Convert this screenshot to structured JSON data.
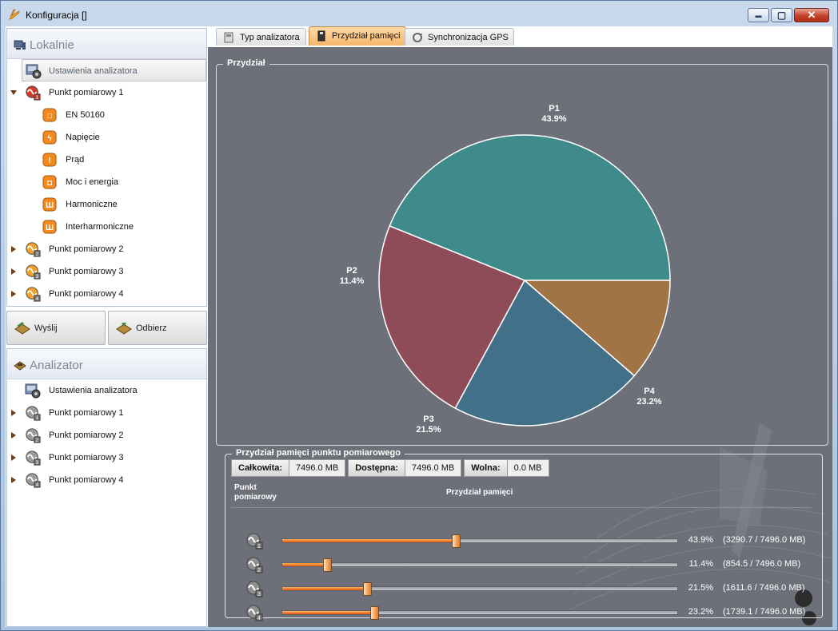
{
  "window": {
    "title": "Konfiguracja []",
    "buttons": {
      "minimize": "▬",
      "maximize": "▢",
      "close": "✕"
    }
  },
  "local_panel": {
    "header": "Lokalnie",
    "items": [
      {
        "label": "Ustawienia analizatora",
        "icon": "analyzer-settings-icon",
        "selected": true
      },
      {
        "label": "Punkt pomiarowy 1",
        "icon": "measure-point-1-icon",
        "expanded": true
      },
      {
        "label": "EN 50160",
        "icon": "en50160-icon"
      },
      {
        "label": "Napięcie",
        "icon": "voltage-icon"
      },
      {
        "label": "Prąd",
        "icon": "current-icon"
      },
      {
        "label": "Moc i energia",
        "icon": "power-energy-icon"
      },
      {
        "label": "Harmoniczne",
        "icon": "harmonics-icon"
      },
      {
        "label": "Interharmoniczne",
        "icon": "interharmonics-icon"
      },
      {
        "label": "Punkt pomiarowy 2",
        "icon": "measure-point-2-icon"
      },
      {
        "label": "Punkt pomiarowy 3",
        "icon": "measure-point-3-icon"
      },
      {
        "label": "Punkt pomiarowy 4",
        "icon": "measure-point-4-icon"
      }
    ]
  },
  "actions": {
    "send": "Wyślij",
    "receive": "Odbierz"
  },
  "analyzer_panel": {
    "header": "Analizator",
    "items": [
      {
        "label": "Ustawienia analizatora"
      },
      {
        "label": "Punkt pomiarowy 1"
      },
      {
        "label": "Punkt pomiarowy 2"
      },
      {
        "label": "Punkt pomiarowy 3"
      },
      {
        "label": "Punkt pomiarowy 4"
      }
    ]
  },
  "tabs": [
    {
      "label": "Typ analizatora",
      "active": false
    },
    {
      "label": "Przydział pamięci",
      "active": true
    },
    {
      "label": "Synchronizacja GPS",
      "active": false
    }
  ],
  "allocation_group": {
    "title": "Przydział"
  },
  "chart_data": {
    "type": "pie",
    "slices": [
      {
        "label": "P1",
        "value": 43.9,
        "pct": "43.9%",
        "color": "#3f8b8c"
      },
      {
        "label": "P2",
        "value": 11.4,
        "pct": "11.4%",
        "color": "#a07444"
      },
      {
        "label": "P3",
        "value": 21.5,
        "pct": "21.5%",
        "color": "#437089"
      },
      {
        "label": "P4",
        "value": 23.2,
        "pct": "23.2%",
        "color": "#8e4c59"
      }
    ]
  },
  "memory_group": {
    "title": "Przydział pamięci punktu pomiarowego",
    "stats": [
      {
        "key": "Całkowita:",
        "value": "7496.0 MB"
      },
      {
        "key": "Dostępna:",
        "value": "7496.0 MB"
      },
      {
        "key": "Wolna:",
        "value": "0.0 MB"
      }
    ],
    "col_point": "Punkt pomiarowy",
    "col_alloc": "Przydział pamięci",
    "sliders": [
      {
        "point": 1,
        "fraction": 0.439,
        "pct": "43.9%",
        "detail": "(3290.7 / 7496.0 MB)"
      },
      {
        "point": 2,
        "fraction": 0.114,
        "pct": "11.4%",
        "detail": "(854.5 / 7496.0 MB)"
      },
      {
        "point": 3,
        "fraction": 0.215,
        "pct": "21.5%",
        "detail": "(1611.6 / 7496.0 MB)"
      },
      {
        "point": 4,
        "fraction": 0.232,
        "pct": "23.2%",
        "detail": "(1739.1 / 7496.0 MB)"
      }
    ]
  }
}
